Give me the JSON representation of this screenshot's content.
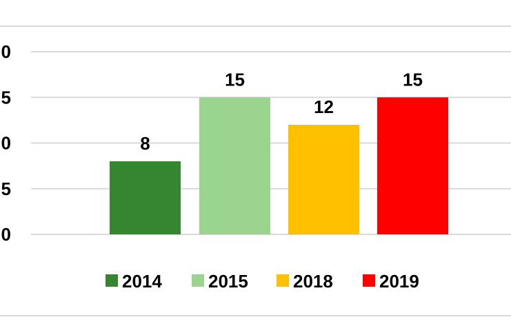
{
  "chart_data": {
    "type": "bar",
    "categories": [
      "2014",
      "2015",
      "2018",
      "2019"
    ],
    "values": [
      8,
      15,
      12,
      15
    ],
    "colors": [
      "#368530",
      "#9bd48e",
      "#ffc000",
      "#ff0000"
    ],
    "y_tick_labels": [
      "0",
      "5",
      "0",
      "5",
      "0"
    ],
    "ylim": [
      0,
      20
    ],
    "data_labels": [
      "8",
      "15",
      "12",
      "15"
    ],
    "legend": [
      "2014",
      "2015",
      "2018",
      "2019"
    ],
    "legend_position": "bottom",
    "grid": true,
    "title": "",
    "xlabel": "",
    "ylabel": ""
  }
}
